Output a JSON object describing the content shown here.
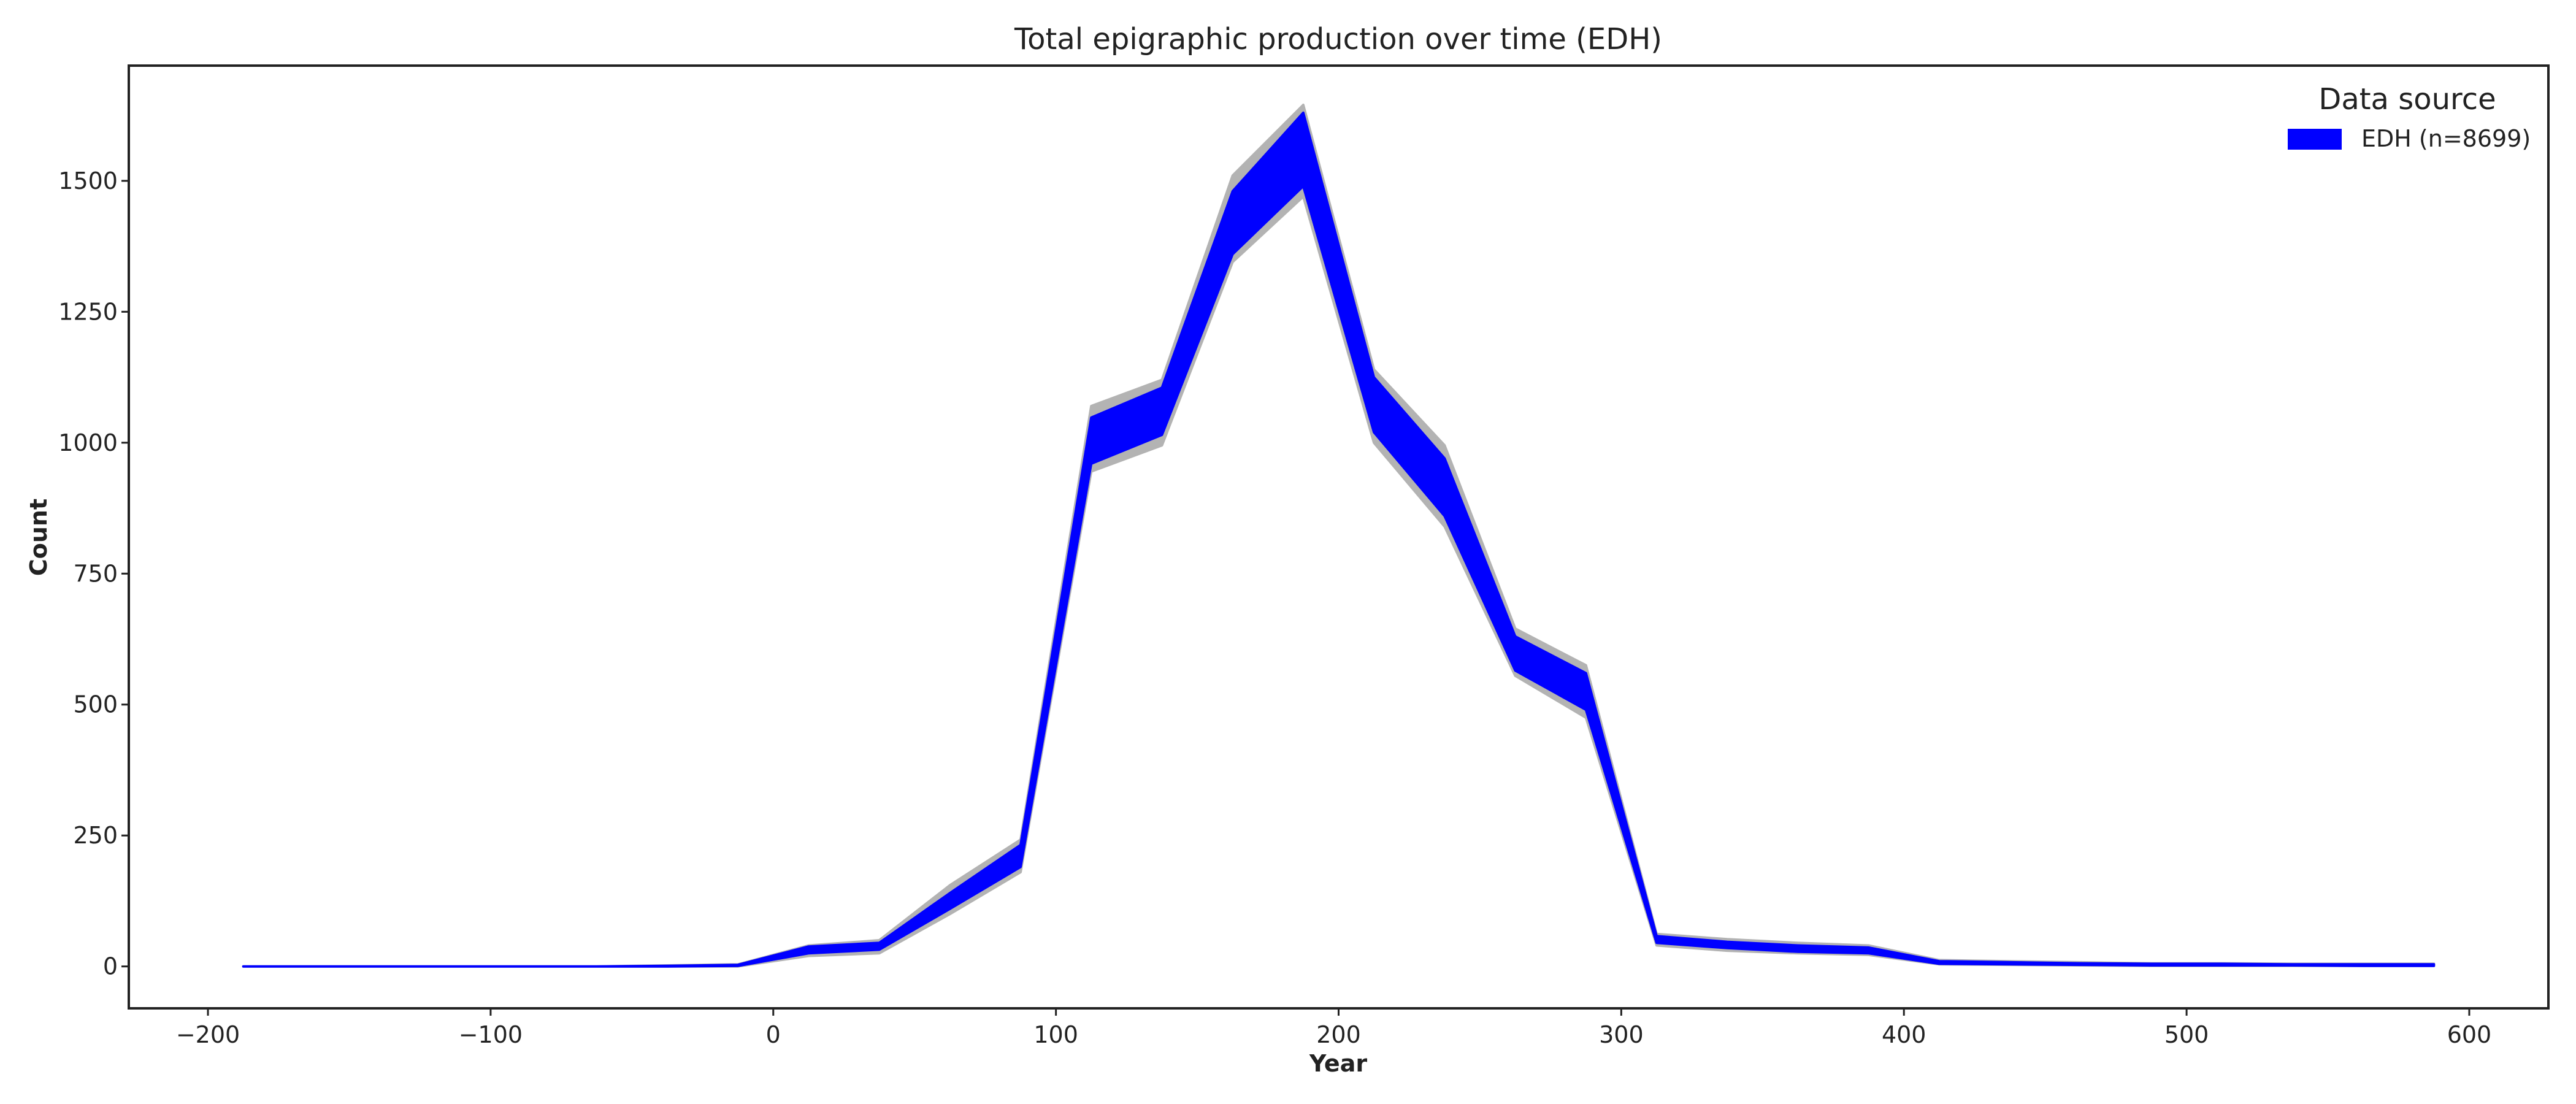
{
  "chart_data": {
    "type": "area",
    "title": "Total epigraphic production over time (EDH)",
    "xlabel": "Year",
    "ylabel": "Count",
    "xlim": [
      -228,
      628
    ],
    "ylim": [
      -80,
      1720
    ],
    "xticks": [
      -200,
      -100,
      0,
      100,
      200,
      300,
      400,
      500,
      600
    ],
    "xtick_labels": [
      "−200",
      "−100",
      "0",
      "100",
      "200",
      "300",
      "400",
      "500",
      "600"
    ],
    "yticks": [
      0,
      250,
      500,
      750,
      1000,
      1250,
      1500
    ],
    "ytick_labels": [
      "0",
      "250",
      "500",
      "750",
      "1000",
      "1250",
      "1500"
    ],
    "grid": false,
    "legend": {
      "title": "Data source",
      "position": "top-right",
      "entries": [
        {
          "label": "EDH (n=8699)",
          "color": "#0000ff"
        }
      ]
    },
    "series": [
      {
        "name": "EDH (n=8699)",
        "color": "#0000ff",
        "x": [
          -187.5,
          -162.5,
          -137.5,
          -112.5,
          -87.5,
          -62.5,
          -37.5,
          -12.5,
          12.5,
          37.5,
          62.5,
          87.5,
          112.5,
          137.5,
          162.5,
          187.5,
          212.5,
          237.5,
          262.5,
          287.5,
          312.5,
          337.5,
          362.5,
          387.5,
          412.5,
          437.5,
          462.5,
          487.5,
          512.5,
          537.5,
          562.5,
          587.5
        ],
        "lower": [
          0,
          0,
          0,
          0,
          0,
          0,
          0,
          1,
          25,
          32,
          110,
          190,
          960,
          1015,
          1360,
          1490,
          1020,
          860,
          565,
          490,
          45,
          35,
          28,
          25,
          5,
          4,
          3,
          2,
          2,
          2,
          1,
          1
        ],
        "upper": [
          0,
          0,
          0,
          0,
          0,
          0,
          1,
          3,
          38,
          45,
          140,
          232,
          1048,
          1105,
          1480,
          1630,
          1125,
          970,
          630,
          560,
          58,
          47,
          40,
          36,
          10,
          8,
          6,
          5,
          5,
          4,
          4,
          4
        ]
      },
      {
        "name": "",
        "color": "#b3b3b3",
        "x": [
          -187.5,
          -162.5,
          -137.5,
          -112.5,
          -87.5,
          -62.5,
          -37.5,
          -12.5,
          12.5,
          37.5,
          62.5,
          87.5,
          112.5,
          137.5,
          162.5,
          187.5,
          212.5,
          237.5,
          262.5,
          287.5,
          312.5,
          337.5,
          362.5,
          387.5,
          412.5,
          437.5,
          462.5,
          487.5,
          512.5,
          537.5,
          562.5,
          587.5
        ],
        "lower": [
          0,
          0,
          0,
          0,
          0,
          0,
          0,
          0,
          20,
          25,
          100,
          180,
          945,
          995,
          1345,
          1470,
          1000,
          840,
          555,
          475,
          40,
          30,
          25,
          22,
          4,
          3,
          2,
          1,
          1,
          1,
          1,
          1
        ],
        "upper": [
          0,
          0,
          0,
          0,
          0,
          0,
          2,
          4,
          40,
          50,
          155,
          242,
          1070,
          1120,
          1510,
          1645,
          1140,
          995,
          645,
          575,
          62,
          52,
          45,
          40,
          12,
          10,
          8,
          6,
          6,
          5,
          5,
          5
        ]
      }
    ]
  }
}
